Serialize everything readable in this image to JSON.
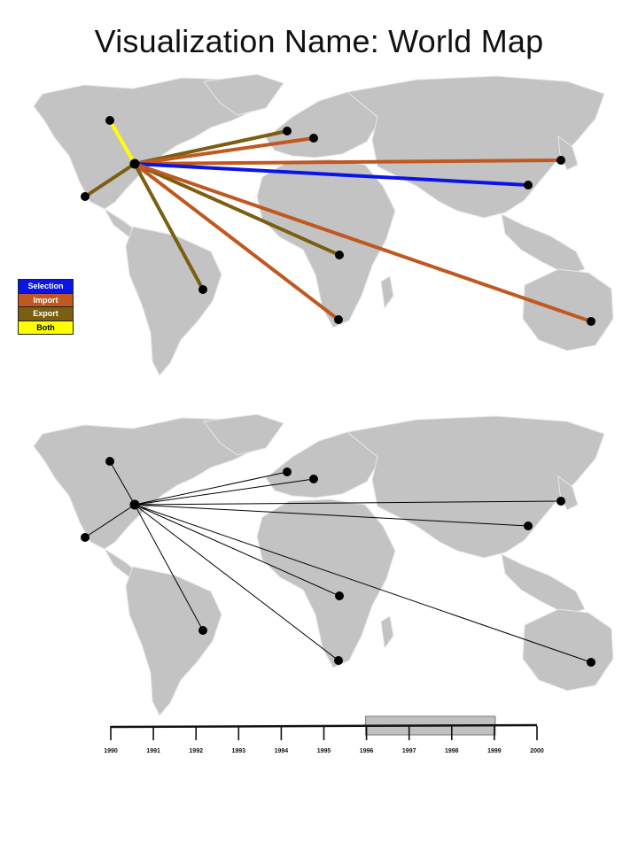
{
  "title": "Visualization Name: World Map",
  "legend": [
    {
      "label": "Selection",
      "color": "#0a14e6",
      "text_color": "#ffffff"
    },
    {
      "label": "Import",
      "color": "#c0581f",
      "text_color": "#ffffff"
    },
    {
      "label": "Export",
      "color": "#7a5e12",
      "text_color": "#ffffff"
    },
    {
      "label": "Both",
      "color": "#ffff00",
      "text_color": "#000000"
    }
  ],
  "colors": {
    "land": "#c3c3c3",
    "node": "#000000",
    "plain_link": "#000000",
    "range_fill": "#c0c0c0"
  },
  "hub": "north-america-east",
  "links": [
    {
      "to": "canada",
      "type": "Both"
    },
    {
      "to": "mexico",
      "type": "Export"
    },
    {
      "to": "brazil",
      "type": "Export"
    },
    {
      "to": "western-europe",
      "type": "Export"
    },
    {
      "to": "central-europe",
      "type": "Import"
    },
    {
      "to": "japan",
      "type": "Import"
    },
    {
      "to": "china",
      "type": "Selection"
    },
    {
      "to": "central-africa",
      "type": "Export"
    },
    {
      "to": "south-africa",
      "type": "Import"
    },
    {
      "to": "australia",
      "type": "Import"
    }
  ],
  "timeline": {
    "years": [
      "1990",
      "1991",
      "1992",
      "1993",
      "1994",
      "1995",
      "1996",
      "1997",
      "1998",
      "1999",
      "2000"
    ],
    "selected_range": [
      "1996",
      "1999"
    ]
  }
}
